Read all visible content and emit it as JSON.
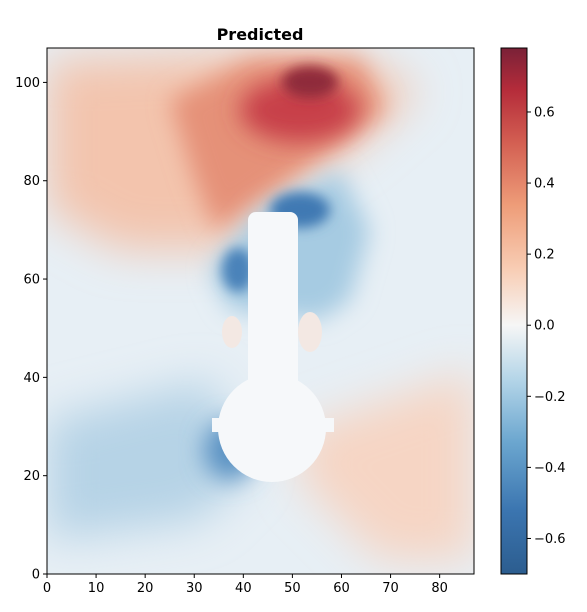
{
  "chart_data": {
    "type": "heatmap",
    "title": "Predicted",
    "xlabel": "",
    "ylabel": "",
    "xlim": [
      0,
      87
    ],
    "ylim": [
      0,
      107
    ],
    "xticks": [
      0,
      10,
      20,
      30,
      40,
      50,
      60,
      70,
      80
    ],
    "yticks": [
      0,
      20,
      40,
      60,
      80,
      100
    ],
    "colormap": "RdBu_r",
    "colorbar": {
      "min": -0.7,
      "max": 0.78,
      "ticks": [
        0.6,
        0.4,
        0.2,
        0.0,
        -0.2,
        -0.4,
        -0.6
      ],
      "tick_labels": [
        "0.6",
        "0.4",
        "0.2",
        "0.0",
        "−0.2",
        "−0.4",
        "−0.6"
      ]
    },
    "features": [
      {
        "kind": "positive_peak",
        "x": 55,
        "y": 101,
        "value": 0.75
      },
      {
        "kind": "positive_lobe",
        "x": 70,
        "y": 22,
        "value": 0.12
      },
      {
        "kind": "negative_lobe",
        "x": 52,
        "y": 77,
        "value": -0.6
      },
      {
        "kind": "negative_lobe",
        "x": 38,
        "y": 62,
        "value": -0.55
      },
      {
        "kind": "negative_lobe",
        "x": 34,
        "y": 25,
        "value": -0.45
      },
      {
        "kind": "masked_obstacle",
        "value": null
      }
    ],
    "grid": false,
    "legend": "colorbar-right"
  }
}
